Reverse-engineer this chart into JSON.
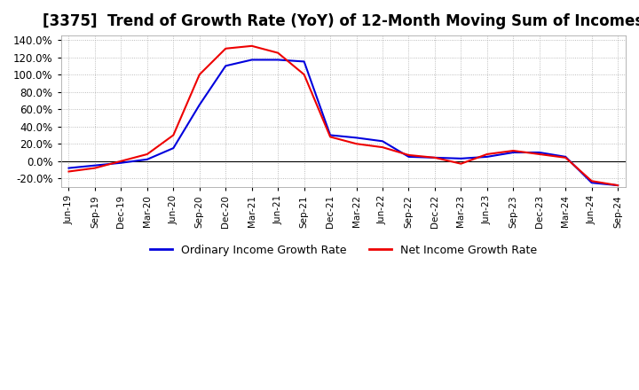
{
  "title": "[3375]  Trend of Growth Rate (YoY) of 12-Month Moving Sum of Incomes",
  "title_fontsize": 12,
  "ylim": [
    -30,
    145
  ],
  "yticks": [
    -20,
    0,
    20,
    40,
    60,
    80,
    100,
    120,
    140
  ],
  "background_color": "#ffffff",
  "grid_color": "#aaaaaa",
  "line1_color": "#0000dd",
  "line2_color": "#ee0000",
  "line1_label": "Ordinary Income Growth Rate",
  "line2_label": "Net Income Growth Rate",
  "dates": [
    "Jun-19",
    "Sep-19",
    "Dec-19",
    "Mar-20",
    "Jun-20",
    "Sep-20",
    "Dec-20",
    "Mar-21",
    "Jun-21",
    "Sep-21",
    "Dec-21",
    "Mar-22",
    "Jun-22",
    "Sep-22",
    "Dec-22",
    "Mar-23",
    "Jun-23",
    "Sep-23",
    "Dec-23",
    "Mar-24",
    "Jun-24",
    "Sep-24"
  ],
  "ordinary_income_growth": [
    -8,
    -5,
    -2,
    2,
    15,
    65,
    110,
    117,
    117,
    115,
    30,
    27,
    23,
    5,
    4,
    3,
    5,
    10,
    10,
    5,
    -25,
    -28
  ],
  "net_income_growth": [
    -12,
    -8,
    0,
    8,
    30,
    100,
    130,
    133,
    125,
    100,
    28,
    20,
    16,
    7,
    4,
    -3,
    8,
    12,
    8,
    4,
    -23,
    -28
  ]
}
